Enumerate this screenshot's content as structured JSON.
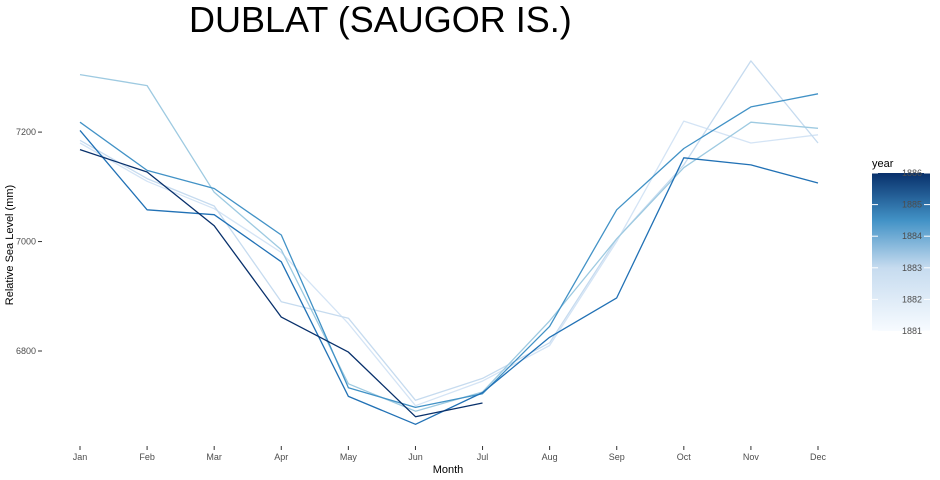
{
  "chart_data": {
    "type": "line",
    "title": "DUBLAT (SAUGOR IS.)",
    "xlabel": "Month",
    "ylabel": "Relative Sea Level (mm)",
    "categories": [
      "Jan",
      "Feb",
      "Mar",
      "Apr",
      "May",
      "Jun",
      "Jul",
      "Aug",
      "Sep",
      "Oct",
      "Nov",
      "Dec"
    ],
    "ylim": [
      6652,
      7350
    ],
    "yticks": [
      6800,
      7000,
      7200
    ],
    "legend": {
      "title": "year",
      "placement": "right",
      "range": [
        1881,
        1886
      ],
      "ticks": [
        1881,
        1882,
        1883,
        1884,
        1885,
        1886
      ],
      "low_color": "#f7fbff",
      "high_color": "#08306b"
    },
    "series": [
      {
        "year": 1881,
        "color": "#d4e4f5",
        "values": [
          7180,
          7110,
          7060,
          6980,
          6850,
          6700,
          6745,
          6810,
          7000,
          7220,
          7180,
          7195
        ]
      },
      {
        "year": 1882,
        "color": "#c6dbef",
        "values": [
          7185,
          7115,
          7065,
          6890,
          6860,
          6710,
          6750,
          6815,
          7005,
          7140,
          7330,
          7180
        ]
      },
      {
        "year": 1883,
        "color": "#9ecae1",
        "values": [
          7305,
          7285,
          7090,
          6985,
          6740,
          6690,
          6725,
          6855,
          7005,
          7135,
          7218,
          7207
        ]
      },
      {
        "year": 1884,
        "color": "#4292c6",
        "values": [
          7218,
          7130,
          7097,
          7012,
          6733,
          6697,
          6722,
          6845,
          7058,
          7170,
          7246,
          7270
        ]
      },
      {
        "year": 1885,
        "color": "#2171b5",
        "values": [
          7203,
          7058,
          7049,
          6963,
          6717,
          6666,
          6724,
          6825,
          6897,
          7153,
          7140,
          7107
        ]
      },
      {
        "year": 1886,
        "color": "#08306b",
        "values": [
          7168,
          7127,
          7029,
          6862,
          6798,
          6680,
          6705,
          null,
          null,
          null,
          null,
          null
        ]
      }
    ]
  }
}
